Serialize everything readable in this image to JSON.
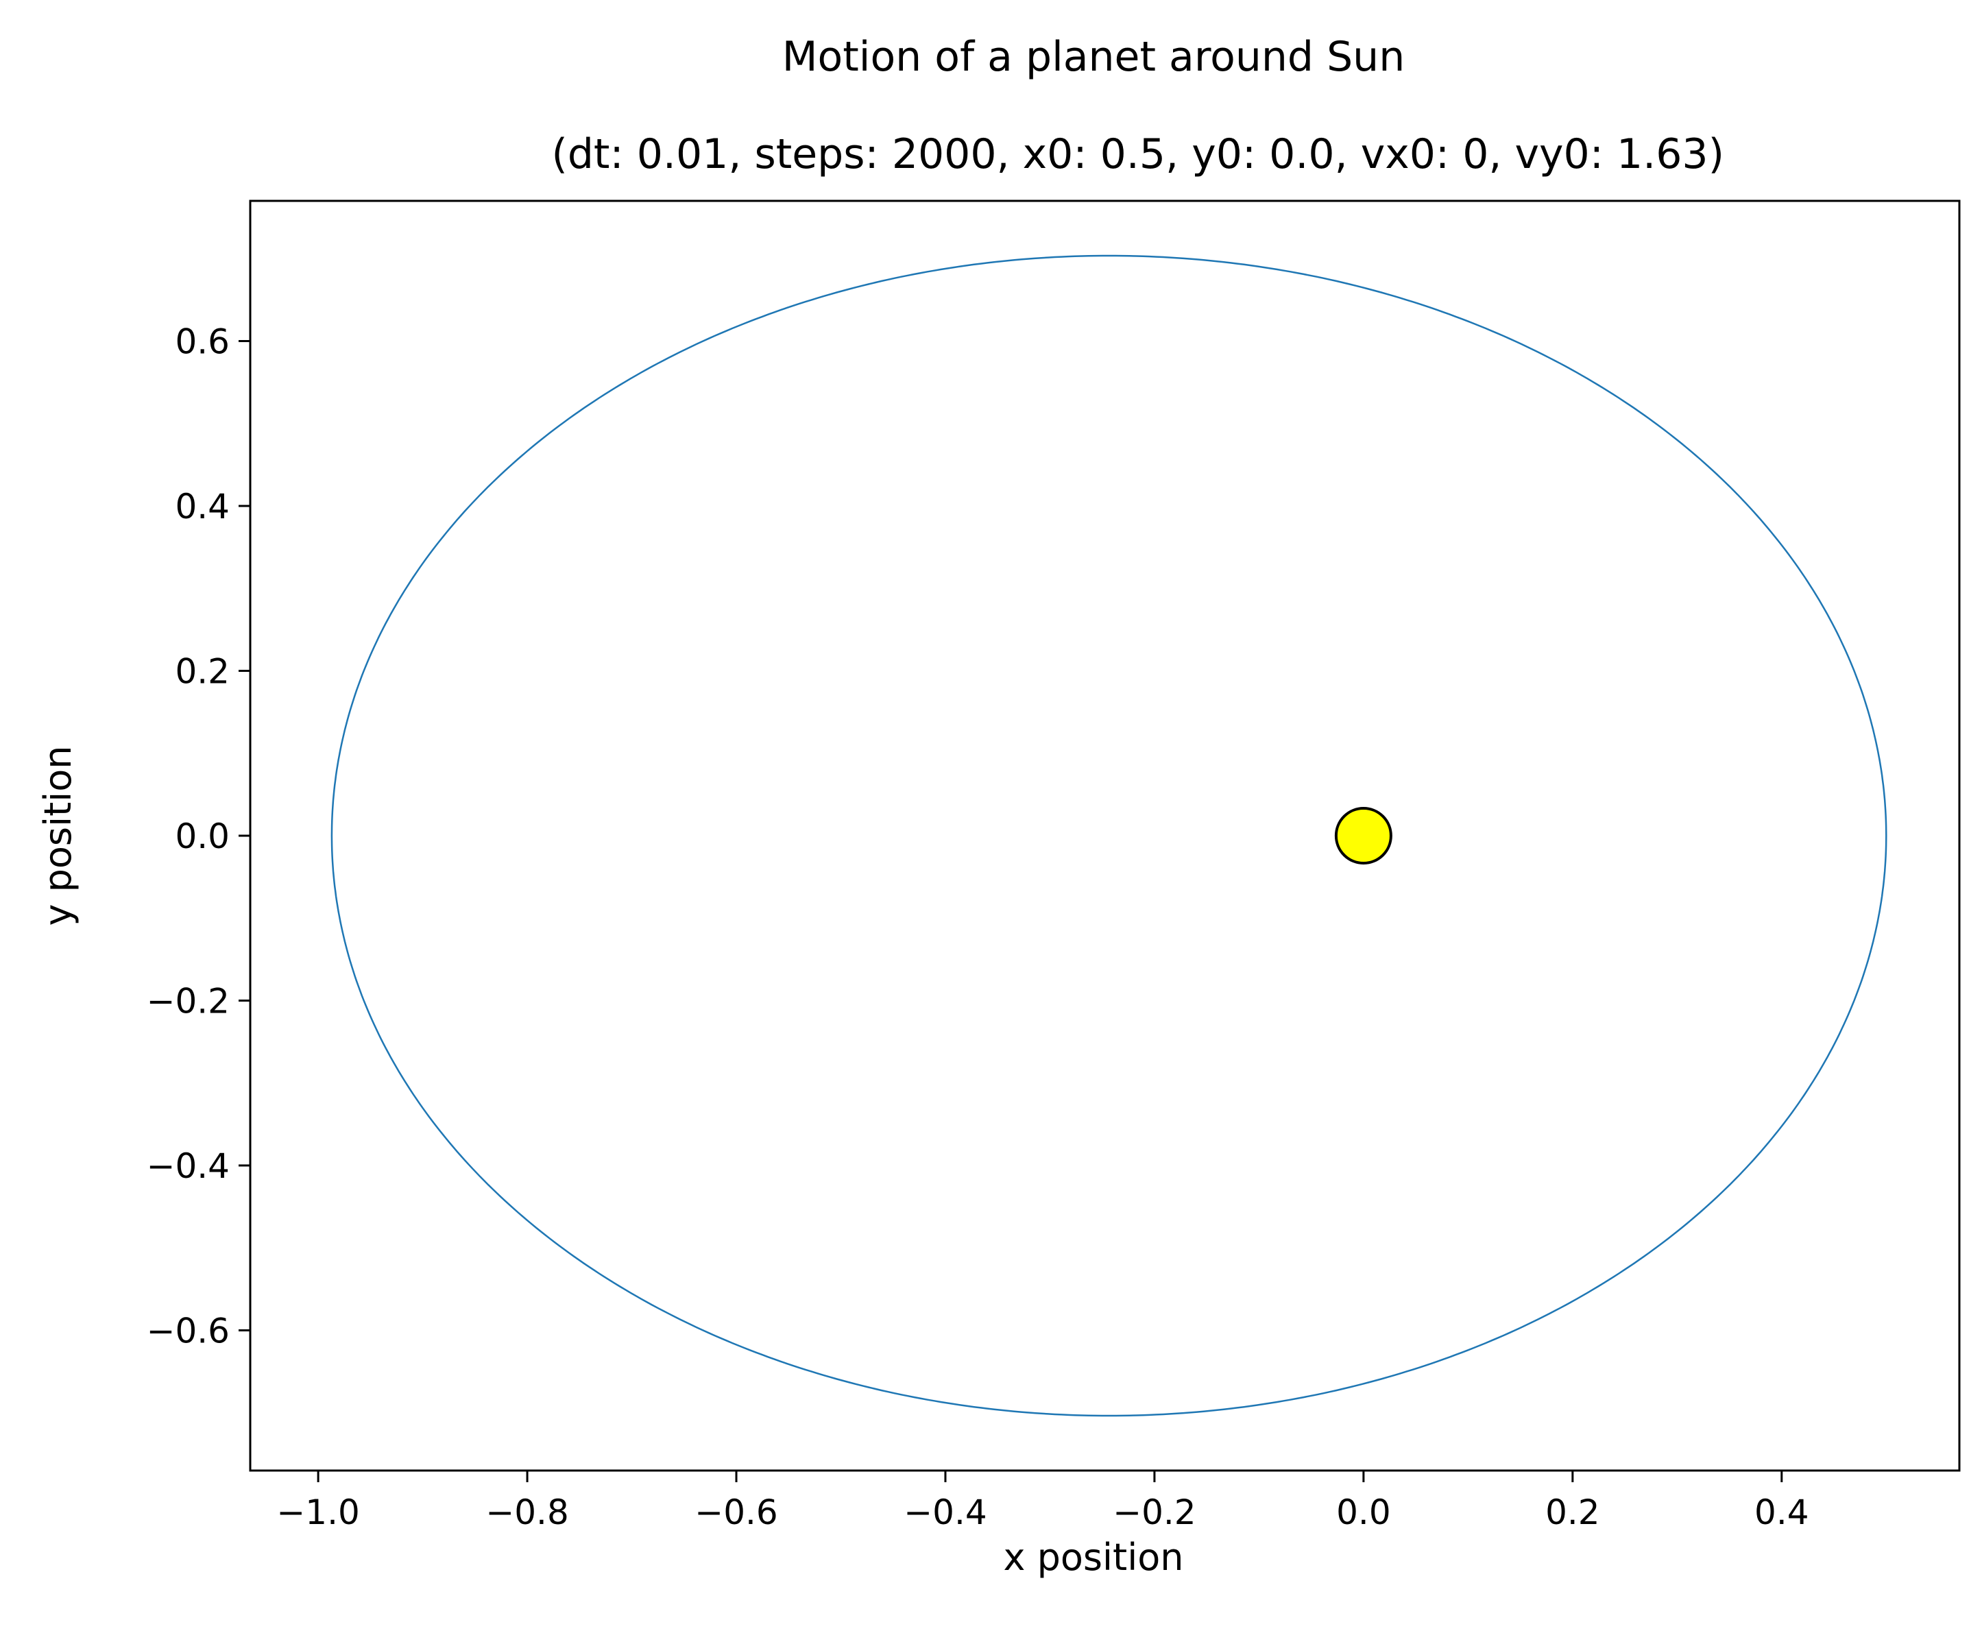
{
  "chart_data": {
    "type": "line",
    "title": "Motion of a planet around Sun",
    "subtitle": "(dt: 0.01, steps: 2000, x0: 0.5, y0: 0.0, vx0: 0, vy0: 1.63)",
    "xlabel": "x position",
    "ylabel": "y position",
    "xlim": [
      -1.065,
      0.57
    ],
    "ylim": [
      -0.77,
      0.77
    ],
    "x_ticks": [
      -1.0,
      -0.8,
      -0.6,
      -0.4,
      -0.2,
      0.0,
      0.2,
      0.4
    ],
    "y_ticks": [
      -0.6,
      -0.4,
      -0.2,
      0.0,
      0.2,
      0.4,
      0.6
    ],
    "x_tick_labels": [
      "−1.0",
      "−0.8",
      "−0.6",
      "−0.4",
      "−0.2",
      "0.0",
      "0.2",
      "0.4"
    ],
    "y_tick_labels": [
      "−0.6",
      "−0.4",
      "−0.2",
      "0.0",
      "0.2",
      "0.4",
      "0.6"
    ],
    "grid": false,
    "legend": false,
    "series": [
      {
        "color": "#1f77b4",
        "orbit": {
          "center_x": -0.2435,
          "center_y": 0.0,
          "semi_major": 0.7435,
          "semi_minor": 0.7035,
          "start_x": 0.5,
          "start_y": 0.0
        }
      }
    ],
    "sun": {
      "x": 0.0,
      "y": 0.0,
      "fill": "#ffff00",
      "edge": "#000000"
    }
  }
}
